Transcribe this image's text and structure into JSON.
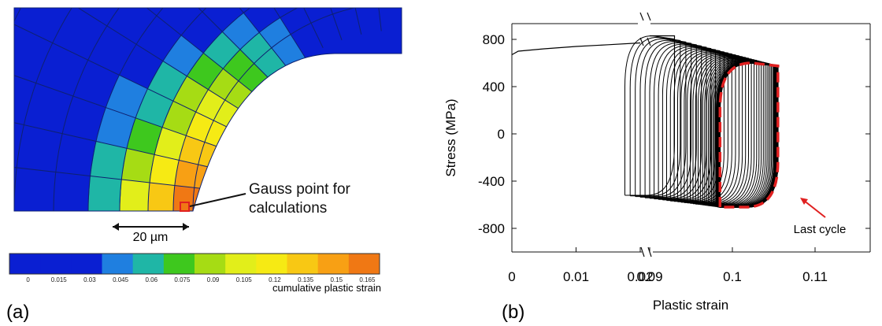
{
  "panel_a": {
    "label": "(a)",
    "annotation": "Gauss point for calculations",
    "annotation_lines": [
      "Gauss point for",
      "calculations"
    ],
    "scale_bar": "20 µm",
    "colorbar": {
      "title": "cumulative plastic strain",
      "ticks": [
        "0",
        "0.015",
        "0.03",
        "0.045",
        "0.06",
        "0.075",
        "0.09",
        "0.105",
        "0.12",
        "0.135",
        "0.15",
        "0.165"
      ],
      "colors": [
        "#0a1fd2",
        "#0a1fd2",
        "#0a1fd2",
        "#1f7fe0",
        "#1fb6a6",
        "#3ec81e",
        "#a6dc14",
        "#e2ee1a",
        "#f6ea14",
        "#f8c814",
        "#f8a014",
        "#f07814"
      ]
    },
    "colors": {
      "background": "#0a1fd2",
      "mesh_line": "#0f2170",
      "highlight": "#e02020"
    }
  },
  "panel_b": {
    "label": "(b)",
    "last_cycle_label": "Last cycle",
    "colors": {
      "curves": "#000000",
      "last_cycle": "#e02020"
    }
  },
  "chart_data": {
    "type": "line",
    "xlabel": "Plastic strain",
    "ylabel": "Stress (MPa)",
    "x_axis_break": [
      0.02,
      0.09
    ],
    "xticks": [
      "0",
      "0.01",
      "0.02",
      "0.09",
      "0.1",
      "0.11"
    ],
    "yticks": [
      "800",
      "400",
      "0",
      "-400",
      "-800"
    ],
    "ylim": [
      -1000,
      1000
    ],
    "xlim": [
      0,
      0.11
    ],
    "series": [
      {
        "role": "monotonic loading",
        "x": [
          0,
          0.001,
          0.005,
          0.01,
          0.015,
          0.02,
          0.09,
          0.093
        ],
        "y": [
          670,
          700,
          720,
          740,
          755,
          770,
          830,
          830
        ]
      }
    ],
    "hysteresis": {
      "loop_count": 40,
      "first_loop": {
        "x_left": 0.087,
        "x_right": 0.093,
        "y_top": 830,
        "y_bottom": -520
      },
      "last_loop": {
        "x_left": 0.0985,
        "x_right": 0.1055,
        "y_top": 600,
        "y_bottom": -620
      }
    },
    "annotations": [
      "Last cycle"
    ]
  }
}
